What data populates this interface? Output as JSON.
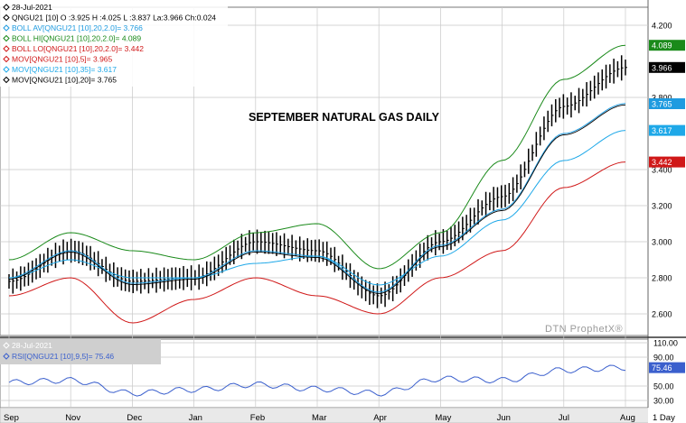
{
  "chart_title": "SEPTEMBER NATURAL GAS DAILY",
  "watermark": "DTN ProphetX®",
  "timeframe": "1 Day",
  "price_panel": {
    "legend": [
      {
        "text": "28-Jul-2021",
        "color": "#000000",
        "icon": "diamond-icon"
      },
      {
        "text": "QNGU21 [10] O :3.925 H :4.025 L :3.837 La:3.966 Ch:0.024",
        "color": "#000000",
        "icon": "diamond-icon"
      },
      {
        "text": "BOLL AV[QNGU21 [10],20,2.0]= 3.766",
        "color": "#1e9be0",
        "icon": "diamond-icon"
      },
      {
        "text": "BOLL HI[QNGU21 [10],20,2.0]= 4.089",
        "color": "#1a8a1a",
        "icon": "diamond-icon"
      },
      {
        "text": "BOLL LO[QNGU21 [10],20,2.0]= 3.442",
        "color": "#d01818",
        "icon": "diamond-icon"
      },
      {
        "text": "MOV[QNGU21 [10],5]= 3.965",
        "color": "#d01818",
        "icon": "diamond-icon"
      },
      {
        "text": "MOV[QNGU21 [10],35]= 3.617",
        "color": "#1ea8e8",
        "icon": "diamond-icon"
      },
      {
        "text": "MOV[QNGU21 [10],20]= 3.765",
        "color": "#000000",
        "icon": "diamond-icon"
      }
    ],
    "y_ticks": [
      "4.200",
      "3.800",
      "3.400",
      "3.200",
      "3.000",
      "2.800",
      "2.600"
    ],
    "value_tags": [
      {
        "text": "4.089",
        "bg": "#1a8a1a",
        "fg": "#ffffff",
        "value": 4.089
      },
      {
        "text": "3.966",
        "bg": "#000000",
        "fg": "#ffffff",
        "value": 3.966
      },
      {
        "text": "3.765",
        "bg": "#1e9be0",
        "fg": "#ffffff",
        "value": 3.765
      },
      {
        "text": "3.617",
        "bg": "#1ea8e8",
        "fg": "#ffffff",
        "value": 3.617
      },
      {
        "text": "3.442",
        "bg": "#d01818",
        "fg": "#ffffff",
        "value": 3.442
      }
    ]
  },
  "rsi_panel": {
    "legend": [
      {
        "text": "28-Jul-2021",
        "color": "#ffffff",
        "icon": "diamond-icon"
      },
      {
        "text": "RSI[QNGU21 [10],9,5]= 75.46",
        "color": "#3a5fcd",
        "icon": "diamond-icon"
      }
    ],
    "y_ticks": [
      "110.00",
      "90.00",
      "50.00",
      "30.00"
    ],
    "value_tag": {
      "text": "75.46",
      "bg": "#3a5fcd",
      "fg": "#ffffff",
      "value": 75.46
    }
  },
  "x_ticks": [
    "Sep",
    "Nov",
    "Dec",
    "Jan",
    "Feb",
    "Mar",
    "Apr",
    "May",
    "Jun",
    "Jul",
    "Aug"
  ],
  "colors": {
    "grid": "#c8c8c8",
    "candles": "#000000",
    "boll_hi": "#1a8a1a",
    "boll_lo": "#d01818",
    "boll_av": "#1e9be0",
    "mov5": "#d01818",
    "mov35": "#1ea8e8",
    "mov20": "#000000",
    "rsi": "#3a5fcd"
  },
  "chart_data": [
    {
      "type": "line",
      "xlabel": "",
      "ylabel": "",
      "ylim": [
        2.48,
        4.3
      ],
      "grid": true,
      "legend_placement": "top-left",
      "x": [
        "Sep",
        "Nov",
        "Dec",
        "Jan",
        "Feb",
        "Mar",
        "Apr",
        "May",
        "Jun",
        "Jul",
        "Aug"
      ],
      "series": [
        {
          "name": "QNGU21 [10]",
          "values": [
            2.78,
            2.95,
            2.78,
            2.8,
            3.0,
            2.95,
            2.7,
            3.0,
            3.25,
            3.75,
            3.966
          ]
        },
        {
          "name": "BOLL HI[QNGU21 [10],20,2.0]",
          "values": [
            2.9,
            3.05,
            2.95,
            2.9,
            3.05,
            3.1,
            2.85,
            3.05,
            3.45,
            3.9,
            4.089
          ]
        },
        {
          "name": "BOLL AV[QNGU21 [10],20,2.0]",
          "values": [
            2.8,
            2.95,
            2.77,
            2.8,
            2.95,
            2.92,
            2.72,
            2.98,
            3.18,
            3.6,
            3.766
          ]
        },
        {
          "name": "BOLL LO[QNGU21 [10],20,2.0]",
          "values": [
            2.7,
            2.8,
            2.55,
            2.68,
            2.8,
            2.7,
            2.6,
            2.8,
            2.95,
            3.3,
            3.442
          ]
        },
        {
          "name": "MOV[QNGU21 [10],35]",
          "values": [
            2.8,
            2.9,
            2.8,
            2.8,
            2.88,
            2.92,
            2.76,
            2.92,
            3.12,
            3.45,
            3.617
          ]
        }
      ]
    },
    {
      "type": "line",
      "ylim": [
        20,
        115
      ],
      "grid": true,
      "x": [
        "Sep",
        "Nov",
        "Dec",
        "Jan",
        "Feb",
        "Mar",
        "Apr",
        "May",
        "Jun",
        "Jul",
        "Aug"
      ],
      "series": [
        {
          "name": "RSI[QNGU21 [10],9,5]",
          "values": [
            55,
            58,
            40,
            45,
            52,
            46,
            40,
            60,
            58,
            72,
            75.46
          ]
        }
      ]
    }
  ]
}
